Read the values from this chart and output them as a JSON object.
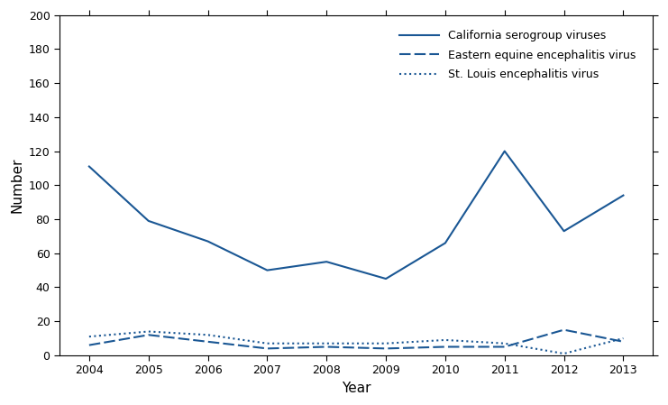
{
  "years": [
    2004,
    2005,
    2006,
    2007,
    2008,
    2009,
    2010,
    2011,
    2012,
    2013
  ],
  "california": [
    111,
    79,
    67,
    50,
    55,
    45,
    66,
    120,
    73,
    94
  ],
  "eastern_equine": [
    6,
    12,
    8,
    4,
    5,
    4,
    5,
    5,
    15,
    8
  ],
  "st_louis": [
    11,
    14,
    12,
    7,
    7,
    7,
    9,
    7,
    1,
    10
  ],
  "california_label": "California serogroup viruses",
  "eastern_equine_label": "Eastern equine encephalitis virus",
  "st_louis_label": "St. Louis encephalitis virus",
  "xlabel": "Year",
  "ylabel": "Number",
  "ylim": [
    0,
    200
  ],
  "yticks": [
    0,
    20,
    40,
    60,
    80,
    100,
    120,
    140,
    160,
    180,
    200
  ],
  "line_color": "#1a5794",
  "background_color": "#ffffff",
  "figsize": [
    7.41,
    4.49
  ],
  "dpi": 100
}
